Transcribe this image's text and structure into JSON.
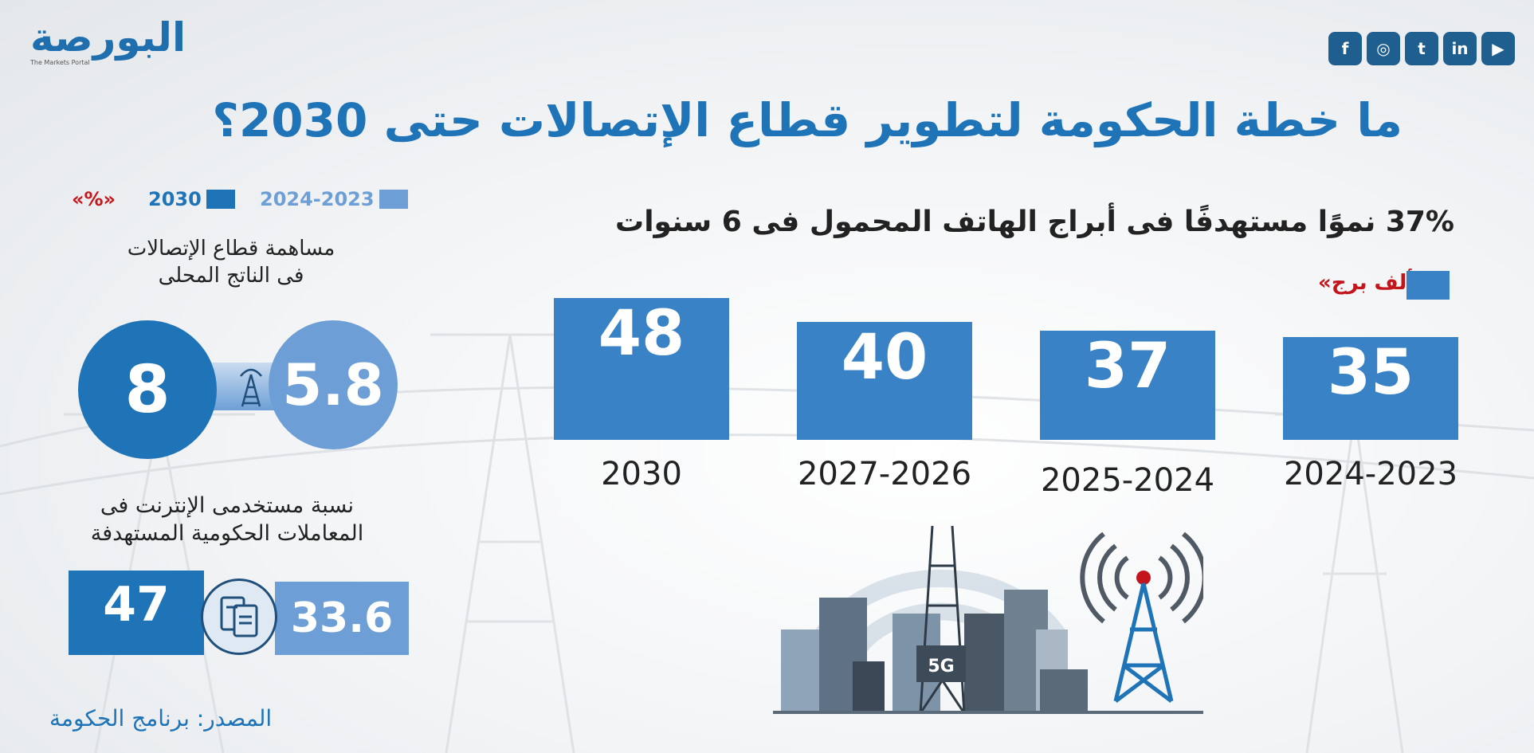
{
  "header": {
    "logo_text": "البورصة",
    "logo_tagline": "The Markets Portal",
    "social_icons": [
      "facebook-icon",
      "instagram-icon",
      "twitter-icon",
      "linkedin-icon",
      "youtube-icon"
    ]
  },
  "title": "ما خطة الحكومة لتطوير قطاع الإتصالات حتى 2030؟",
  "legend": {
    "series_2030": "2030",
    "series_2023": "2024-2023",
    "unit_percent": "«%»"
  },
  "gdp": {
    "label_line1": "مساهمة قطاع الإتصالات",
    "label_line2": "فى الناتج المحلى",
    "value_2030": "8",
    "value_2023": "5.8"
  },
  "internet": {
    "label_line1": "نسبة مستخدمى الإنترنت فى",
    "label_line2": "المعاملات الحكومية المستهدفة",
    "value_2030": "47",
    "value_2023": "33.6"
  },
  "source": "المصدر: برنامج الحكومة",
  "colors": {
    "dark_blue": "#1f73b7",
    "light_blue": "#6d9fd6",
    "bar_blue": "#3a82c6",
    "unit_red": "#c3161c"
  },
  "chart_data": {
    "type": "bar",
    "title": "37% نموًا  مستهدفًا فى أبراج الهاتف المحمول فى 6 سنوات",
    "unit": "«ألف برج»",
    "categories": [
      "2024-2023",
      "2025-2024",
      "2027-2026",
      "2030"
    ],
    "values": [
      35,
      37,
      40,
      48
    ],
    "ylim": [
      0,
      50
    ],
    "grid": false
  }
}
